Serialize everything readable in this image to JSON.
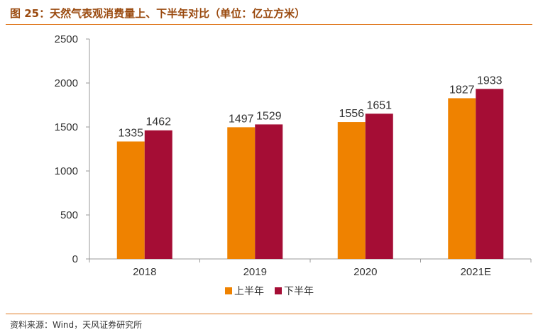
{
  "header": {
    "title": "图 25：天然气表观消费量上、下半年对比（单位：亿立方米）"
  },
  "footer": {
    "source": "资料来源：Wind，天风证券研究所"
  },
  "colors": {
    "accent": "#e07a22",
    "series_first_half": "#ef8200",
    "series_second_half": "#a50d35"
  },
  "chart_data": {
    "type": "bar",
    "title": "天然气表观消费量上、下半年对比（单位：亿立方米）",
    "xlabel": "",
    "ylabel": "",
    "ylim": [
      0,
      2500
    ],
    "yticks": [
      0,
      500,
      1000,
      1500,
      2000,
      2500
    ],
    "grid": false,
    "legend_position": "bottom",
    "categories": [
      "2018",
      "2019",
      "2020",
      "2021E"
    ],
    "series": [
      {
        "name": "上半年",
        "color": "#ef8200",
        "values": [
          1335,
          1497,
          1556,
          1827
        ]
      },
      {
        "name": "下半年",
        "color": "#a50d35",
        "values": [
          1462,
          1529,
          1651,
          1933
        ]
      }
    ]
  }
}
